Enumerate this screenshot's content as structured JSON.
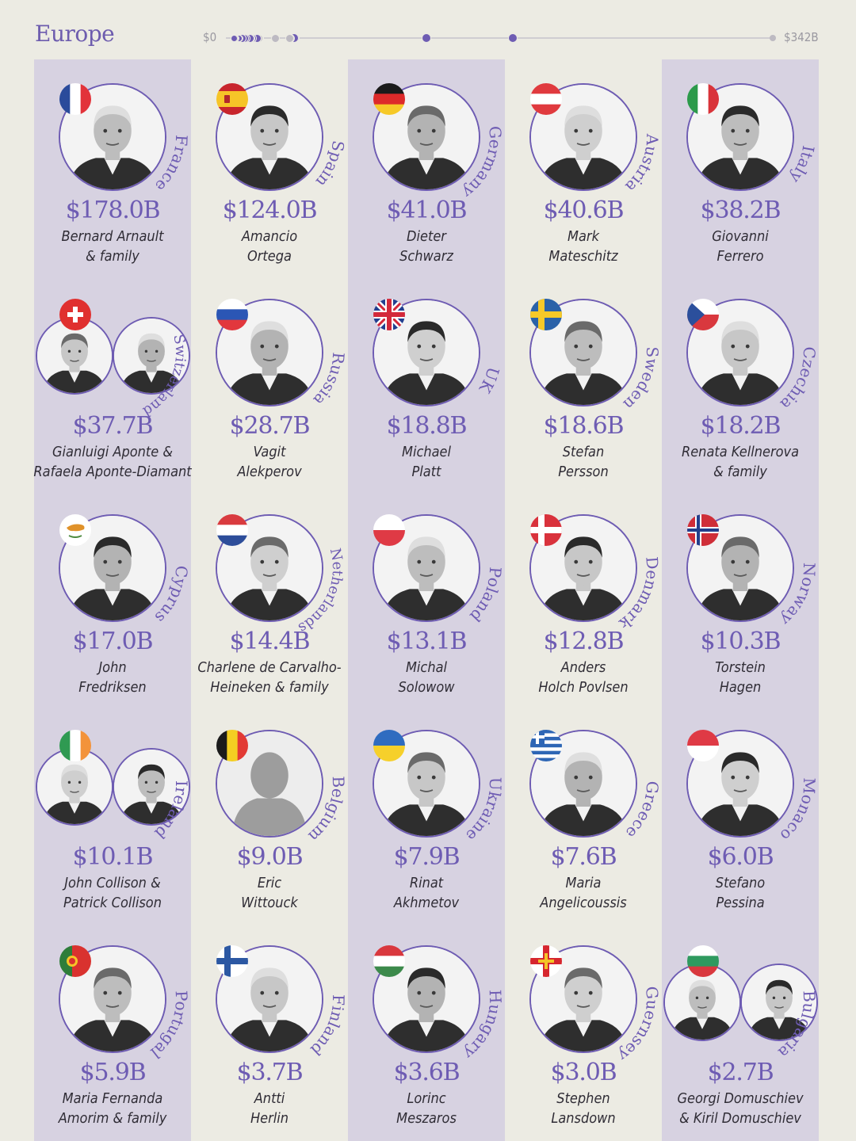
{
  "region": "Europe",
  "scale": {
    "min_label": "$0",
    "max_label": "$342B",
    "max_value": 342,
    "dot_color": "#6e5cb3",
    "muted_dot_color": "#bdbac2"
  },
  "colors": {
    "accent": "#6e5cb3",
    "column": "#d7d2e1",
    "background": "#ecebe3"
  },
  "billionaires": [
    {
      "country": "France",
      "flag": "france",
      "worth": "$178.0B",
      "value": 178.0,
      "name_lines": [
        "Bernard Arnault",
        "& family"
      ],
      "people": 1
    },
    {
      "country": "Spain",
      "flag": "spain",
      "worth": "$124.0B",
      "value": 124.0,
      "name_lines": [
        "Amancio",
        "Ortega"
      ],
      "people": 1
    },
    {
      "country": "Germany",
      "flag": "germany",
      "worth": "$41.0B",
      "value": 41.0,
      "name_lines": [
        "Dieter",
        "Schwarz"
      ],
      "people": 1
    },
    {
      "country": "Austria",
      "flag": "austria",
      "worth": "$40.6B",
      "value": 40.6,
      "name_lines": [
        "Mark",
        "Mateschitz"
      ],
      "people": 1
    },
    {
      "country": "Italy",
      "flag": "italy",
      "worth": "$38.2B",
      "value": 38.2,
      "name_lines": [
        "Giovanni",
        "Ferrero"
      ],
      "people": 1
    },
    {
      "country": "Switzerland",
      "flag": "switzerland",
      "worth": "$37.7B",
      "value": 37.7,
      "name_lines": [
        "Gianluigi Aponte &",
        "Rafaela Aponte-Diamant"
      ],
      "people": 2
    },
    {
      "country": "Russia",
      "flag": "russia",
      "worth": "$28.7B",
      "value": 28.7,
      "name_lines": [
        "Vagit",
        "Alekperov"
      ],
      "people": 1
    },
    {
      "country": "UK",
      "flag": "uk",
      "worth": "$18.8B",
      "value": 18.8,
      "name_lines": [
        "Michael",
        "Platt"
      ],
      "people": 1
    },
    {
      "country": "Sweden",
      "flag": "sweden",
      "worth": "$18.6B",
      "value": 18.6,
      "name_lines": [
        "Stefan",
        "Persson"
      ],
      "people": 1
    },
    {
      "country": "Czechia",
      "flag": "czechia",
      "worth": "$18.2B",
      "value": 18.2,
      "name_lines": [
        "Renata Kellnerova",
        "& family"
      ],
      "people": 1
    },
    {
      "country": "Cyprus",
      "flag": "cyprus",
      "worth": "$17.0B",
      "value": 17.0,
      "name_lines": [
        "John",
        "Fredriksen"
      ],
      "people": 1
    },
    {
      "country": "Netherlands",
      "flag": "netherlands",
      "worth": "$14.4B",
      "value": 14.4,
      "name_lines": [
        "Charlene de Carvalho-",
        "Heineken & family"
      ],
      "people": 1
    },
    {
      "country": "Poland",
      "flag": "poland",
      "worth": "$13.1B",
      "value": 13.1,
      "name_lines": [
        "Michal",
        "Solowow"
      ],
      "people": 1
    },
    {
      "country": "Denmark",
      "flag": "denmark",
      "worth": "$12.8B",
      "value": 12.8,
      "name_lines": [
        "Anders",
        "Holch Povlsen"
      ],
      "people": 1
    },
    {
      "country": "Norway",
      "flag": "norway",
      "worth": "$10.3B",
      "value": 10.3,
      "name_lines": [
        "Torstein",
        "Hagen"
      ],
      "people": 1
    },
    {
      "country": "Ireland",
      "flag": "ireland",
      "worth": "$10.1B",
      "value": 10.1,
      "name_lines": [
        "John Collison &",
        "Patrick Collison"
      ],
      "people": 2
    },
    {
      "country": "Belgium",
      "flag": "belgium",
      "worth": "$9.0B",
      "value": 9.0,
      "name_lines": [
        "Eric",
        "Wittouck"
      ],
      "people": 1,
      "placeholder": true
    },
    {
      "country": "Ukraine",
      "flag": "ukraine",
      "worth": "$7.9B",
      "value": 7.9,
      "name_lines": [
        "Rinat",
        "Akhmetov"
      ],
      "people": 1
    },
    {
      "country": "Greece",
      "flag": "greece",
      "worth": "$7.6B",
      "value": 7.6,
      "name_lines": [
        "Maria",
        "Angelicoussis"
      ],
      "people": 1
    },
    {
      "country": "Monaco",
      "flag": "monaco",
      "worth": "$6.0B",
      "value": 6.0,
      "name_lines": [
        "Stefano",
        "Pessina"
      ],
      "people": 1
    },
    {
      "country": "Portugal",
      "flag": "portugal",
      "worth": "$5.9B",
      "value": 5.9,
      "name_lines": [
        "Maria Fernanda",
        "Amorim & family"
      ],
      "people": 1
    },
    {
      "country": "Finland",
      "flag": "finland",
      "worth": "$3.7B",
      "value": 3.7,
      "name_lines": [
        "Antti",
        "Herlin"
      ],
      "people": 1
    },
    {
      "country": "Hungary",
      "flag": "hungary",
      "worth": "$3.6B",
      "value": 3.6,
      "name_lines": [
        "Lorinc",
        "Meszaros"
      ],
      "people": 1
    },
    {
      "country": "Guernsey",
      "flag": "guernsey",
      "worth": "$3.0B",
      "value": 3.0,
      "name_lines": [
        "Stephen",
        "Lansdown"
      ],
      "people": 1
    },
    {
      "country": "Bulgaria",
      "flag": "bulgaria",
      "worth": "$2.7B",
      "value": 2.7,
      "name_lines": [
        "Georgi Domuschiev",
        "& Kiril Domuschiev"
      ],
      "people": 2
    }
  ]
}
